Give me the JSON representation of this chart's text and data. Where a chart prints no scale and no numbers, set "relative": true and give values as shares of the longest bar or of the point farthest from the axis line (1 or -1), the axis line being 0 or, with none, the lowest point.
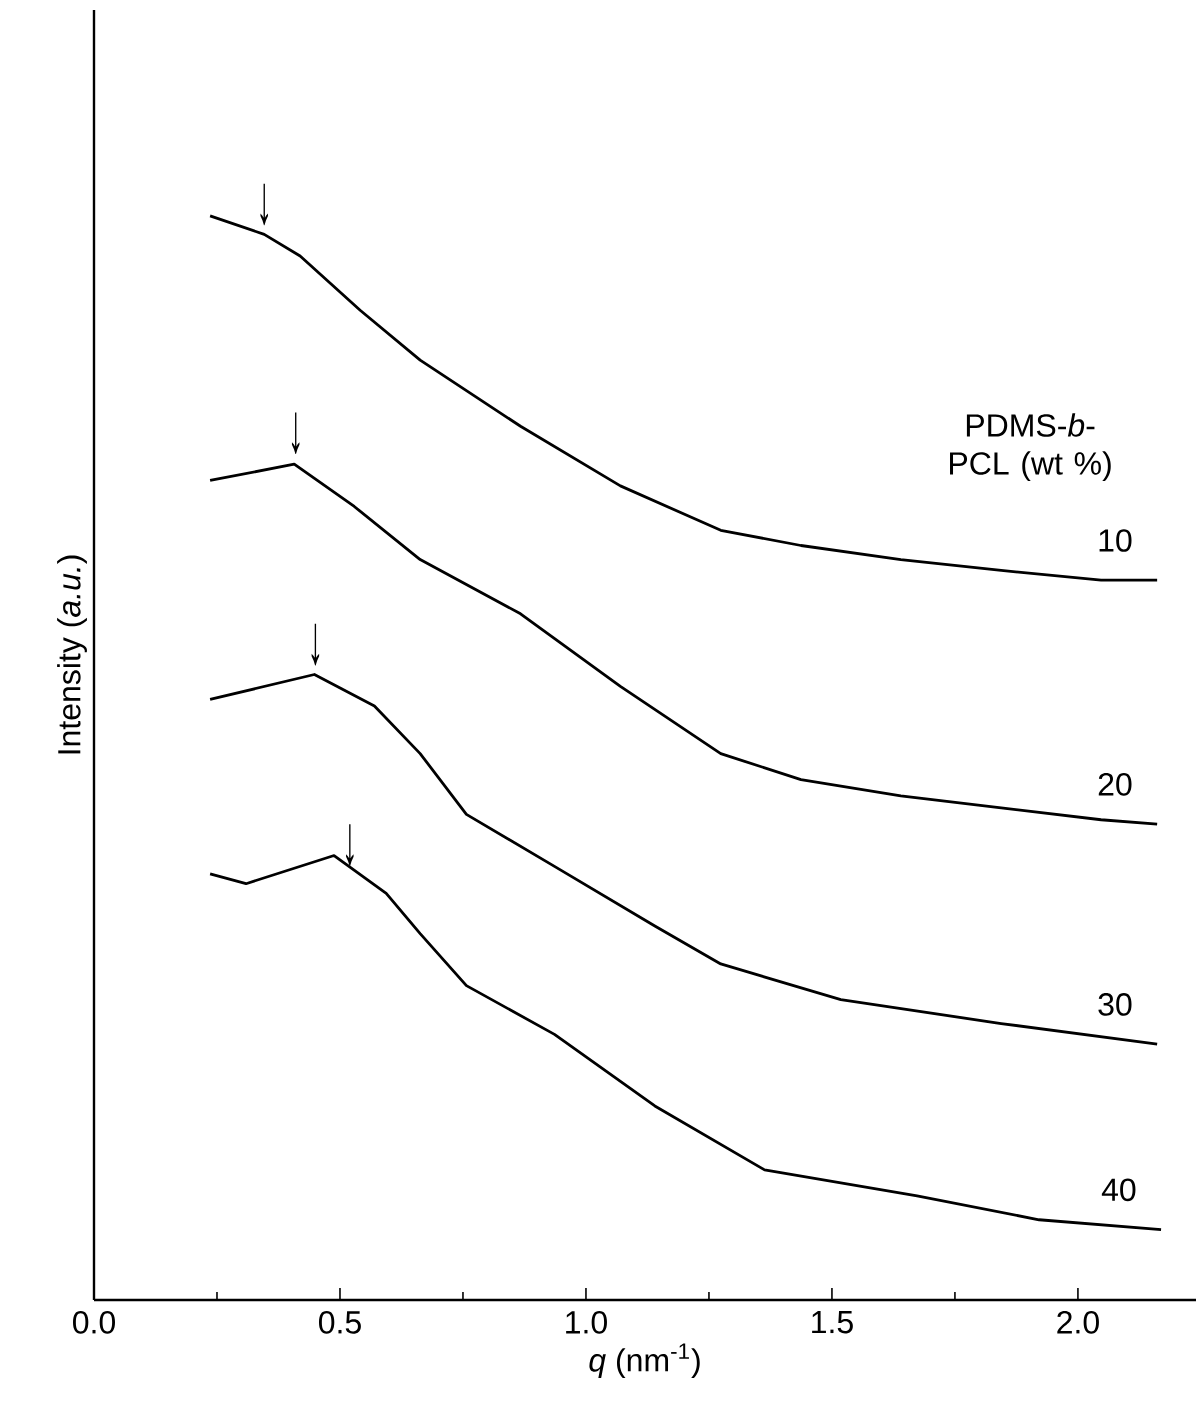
{
  "chart_data": {
    "type": "line",
    "relative": true,
    "xlabel": "*q* (nm$^{-1}$)",
    "ylabel": "Intensity (*a.u.*)",
    "legend_title": "PDMS-*b*-PCL (wt %)",
    "annotations": [
      {
        "text": "↓",
        "x": 0.346,
        "y": 0.991
      },
      {
        "text": "↓",
        "x": 0.41,
        "y": 0.78
      },
      {
        "text": "↓",
        "x": 0.45,
        "y": 0.585
      },
      {
        "text": "↓",
        "x": 0.52,
        "y": 0.4
      }
    ],
    "xlim": [
      0,
      2.24
    ],
    "xticks": [
      {
        "value": 0,
        "label": "0.0"
      },
      {
        "value": 0.5,
        "label": "0.5"
      },
      {
        "value": 1,
        "label": "1.0"
      },
      {
        "value": 1.5,
        "label": "1.5"
      },
      {
        "value": 2,
        "label": "2.0"
      }
    ],
    "marker": "none",
    "line_style": "solid",
    "series": [
      {
        "name": "10",
        "color": "#000000",
        "x": [
          0.236,
          0.346,
          0.419,
          0.541,
          0.663,
          0.867,
          1.07,
          1.274,
          1.437,
          1.64,
          1.844,
          2.047,
          2.161
        ],
        "values": [
          1.0,
          0.983,
          0.963,
          0.913,
          0.867,
          0.806,
          0.751,
          0.71,
          0.696,
          0.683,
          0.673,
          0.664,
          0.664
        ]
      },
      {
        "name": "20",
        "color": "#000000",
        "x": [
          0.236,
          0.407,
          0.529,
          0.663,
          0.867,
          1.07,
          1.274,
          1.437,
          1.64,
          1.844,
          2.047,
          2.161
        ],
        "values": [
          0.756,
          0.771,
          0.732,
          0.683,
          0.633,
          0.566,
          0.504,
          0.48,
          0.465,
          0.454,
          0.443,
          0.439
        ]
      },
      {
        "name": "30",
        "color": "#000000",
        "x": [
          0.236,
          0.448,
          0.57,
          0.663,
          0.757,
          0.936,
          1.14,
          1.274,
          1.518,
          1.844,
          2.161
        ],
        "values": [
          0.554,
          0.577,
          0.548,
          0.504,
          0.448,
          0.4,
          0.345,
          0.31,
          0.277,
          0.255,
          0.236
        ]
      },
      {
        "name": "40",
        "color": "#000000",
        "x": [
          0.236,
          0.309,
          0.488,
          0.594,
          0.663,
          0.757,
          0.936,
          1.14,
          1.363,
          1.673,
          1.921,
          2.169
        ],
        "values": [
          0.393,
          0.384,
          0.41,
          0.375,
          0.338,
          0.29,
          0.245,
          0.179,
          0.12,
          0.096,
          0.074,
          0.065
        ]
      }
    ]
  }
}
